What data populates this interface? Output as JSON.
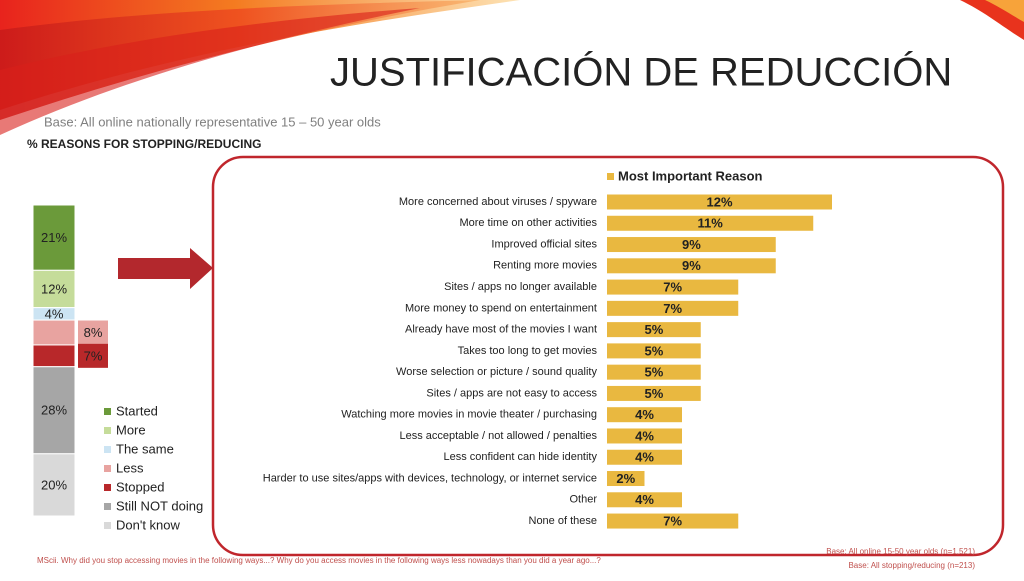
{
  "title": "JUSTIFICACIÓN DE REDUCCIÓN",
  "base_note": "Base: All online nationally representative 15 – 50 year olds",
  "section_title": "% REASONS FOR STOPPING/REDUCING",
  "footer_question": "MScii. Why did you stop accessing movies in the following ways...? Why do you access movies in the following ways less nowadays than you did a year ago...?",
  "footer_base_1": "Base: All online 15-50 year olds (n=1,521)",
  "footer_base_2": "Base: All stopping/reducing (n=213)",
  "chart_data": [
    {
      "type": "stacked_bar",
      "categories": [
        null
      ],
      "ylim": [
        0,
        100
      ],
      "series": [
        {
          "name": "Started",
          "color": "#6b9a3a",
          "values": [
            21
          ],
          "value_labels": [
            "21%"
          ]
        },
        {
          "name": "More",
          "color": "#c5dc9a",
          "values": [
            12
          ],
          "value_labels": [
            "12%"
          ]
        },
        {
          "name": "The same",
          "color": "#cce4f3",
          "values": [
            4
          ],
          "value_labels": [
            "4%"
          ]
        },
        {
          "name": "Less",
          "color": "#e8a3a0",
          "values": [
            8
          ],
          "value_labels": [
            "8%"
          ]
        },
        {
          "name": "Stopped",
          "color": "#b8282a",
          "values": [
            7
          ],
          "value_labels": [
            "7%"
          ]
        },
        {
          "name": "Still NOT doing",
          "color": "#a6a6a6",
          "values": [
            28
          ],
          "value_labels": [
            "28%"
          ]
        },
        {
          "name": "Don't know",
          "color": "#d9d9d9",
          "values": [
            20
          ],
          "value_labels": [
            "20%"
          ]
        }
      ]
    },
    {
      "type": "bar",
      "horizontal": true,
      "xlim": [
        0,
        12
      ],
      "categories": [
        "More concerned about viruses / spyware",
        "More time on other activities",
        "Improved official sites",
        "Renting more movies",
        "Sites / apps no longer available",
        "More money to spend on entertainment",
        "Already have most of the movies I want",
        "Takes too long to get movies",
        "Worse selection or picture / sound quality",
        "Sites / apps are not easy to access",
        "Watching more movies in movie theater / purchasing",
        "Less acceptable / not allowed / penalties",
        "Less confident can hide identity",
        "Harder to use sites/apps with devices, technology, or internet service",
        "Other",
        "None of these"
      ],
      "series": [
        {
          "name": "Most Important Reason",
          "color": "#e9b840",
          "values": [
            12,
            11,
            9,
            9,
            7,
            7,
            5,
            5,
            5,
            5,
            4,
            4,
            4,
            2,
            4,
            7
          ],
          "value_labels": [
            "12%",
            "11%",
            "9%",
            "9%",
            "7%",
            "7%",
            "5%",
            "5%",
            "5%",
            "5%",
            "4%",
            "4%",
            "4%",
            "2%",
            "4%",
            "7%"
          ]
        }
      ]
    }
  ]
}
